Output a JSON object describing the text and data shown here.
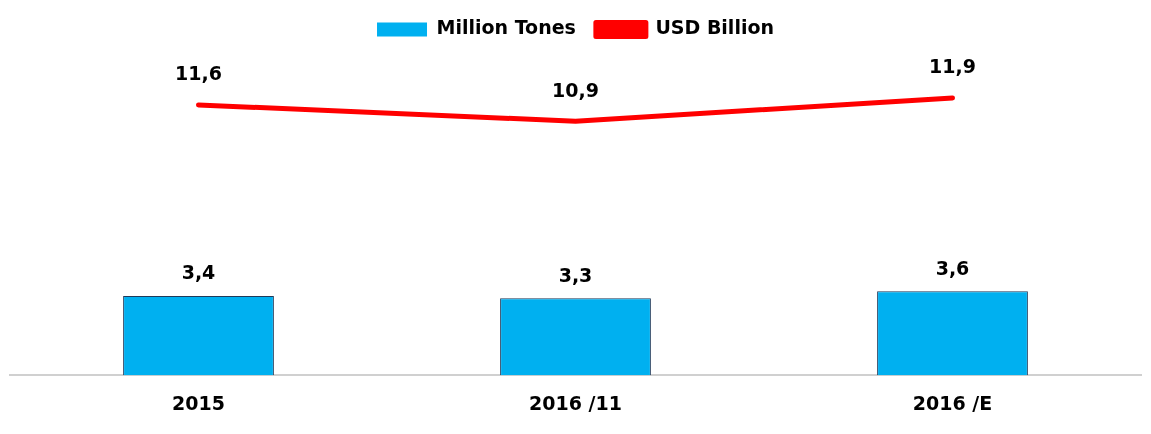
{
  "chart_data": {
    "type": "bar",
    "categories": [
      "2015",
      "2016 /11",
      "2016 /E"
    ],
    "series": [
      {
        "name": "Million Tones",
        "color": "#00b0f0",
        "values": [
          3.4,
          3.3,
          3.6
        ],
        "value_labels": [
          "3,4",
          "3,3",
          "3,6"
        ]
      },
      {
        "name": "USD Billion",
        "type": "line",
        "color": "#ff0000",
        "values": [
          11.6,
          10.9,
          11.9
        ],
        "value_labels": [
          "11,6",
          "10,9",
          "11,9"
        ]
      }
    ],
    "legend": "top",
    "grid": false,
    "marker": "none"
  }
}
